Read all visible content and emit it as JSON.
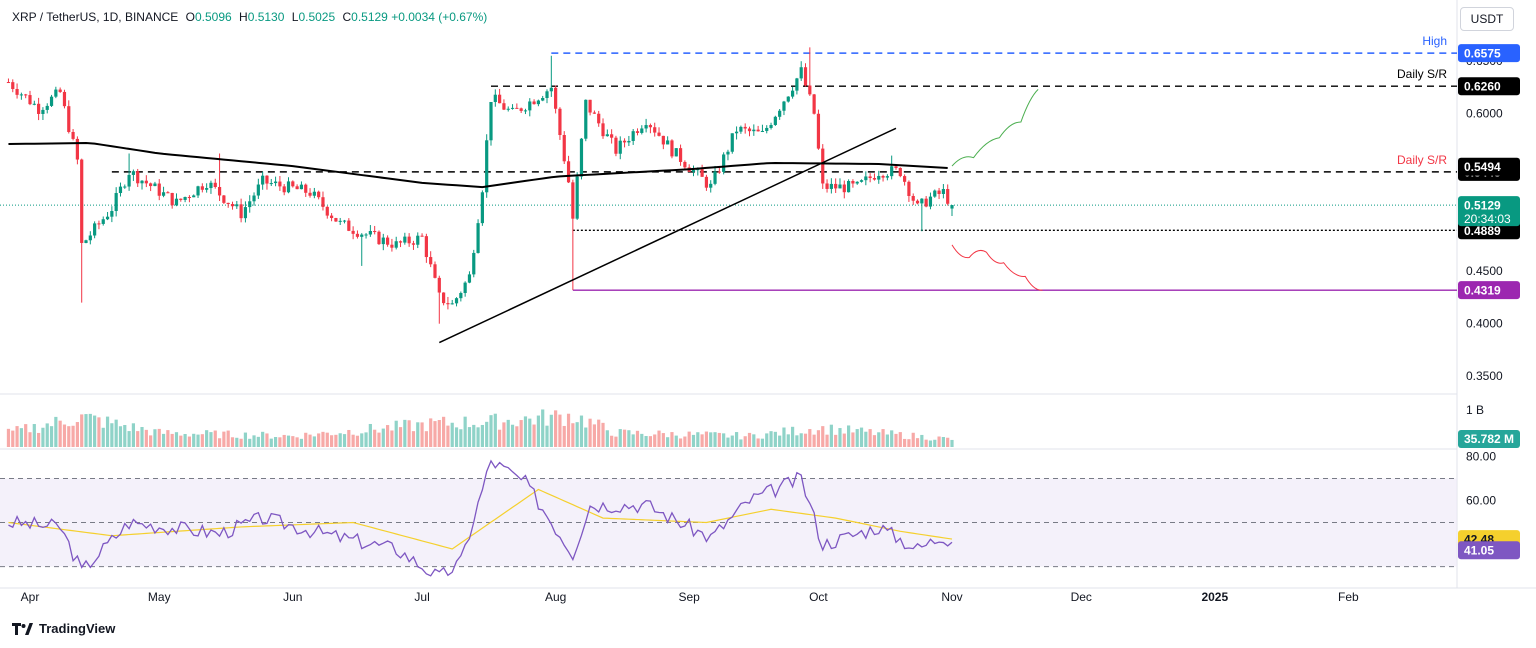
{
  "header": {
    "symbol_line": "XRP / TetherUS, 1D, BINANCE",
    "open_label": "O",
    "open": "0.5096",
    "high_label": "H",
    "high": "0.5130",
    "low_label": "L",
    "low": "0.5025",
    "close_label": "C",
    "close": "0.5129",
    "change": "+0.0034 (+0.67%)"
  },
  "unit_badge": "USDT",
  "footer_brand": "TradingView",
  "colors": {
    "up": "#089981",
    "down": "#f23645",
    "ma": "#000000",
    "high_line": "#2962ff",
    "support_line": "#9c27b0",
    "green_path": "#4caf50",
    "red_path": "#f23645",
    "rsi_line": "#7e57c2",
    "rsi_ma": "#f5d02d",
    "rsi_band": "#ede7f6"
  },
  "chart_data": [
    {
      "type": "candlestick",
      "panel": "price",
      "y_ticks": [
        "0.6500",
        "0.6000",
        "0.5500",
        "0.4500",
        "0.4000",
        "0.3500"
      ],
      "ylim": [
        0.335,
        0.67
      ],
      "x_ticks": [
        "Apr",
        "May",
        "Jun",
        "Jul",
        "Aug",
        "Sep",
        "Oct",
        "Nov",
        "Dec",
        "2025",
        "Feb"
      ],
      "date_range": [
        "2024-03-27",
        "2024-11-01"
      ],
      "moving_average_200": [
        {
          "date": "2024-03-27",
          "value": 0.571
        },
        {
          "date": "2024-04-15",
          "value": 0.572
        },
        {
          "date": "2024-05-01",
          "value": 0.562
        },
        {
          "date": "2024-06-01",
          "value": 0.55
        },
        {
          "date": "2024-07-01",
          "value": 0.534
        },
        {
          "date": "2024-07-15",
          "value": 0.53
        },
        {
          "date": "2024-08-01",
          "value": 0.54
        },
        {
          "date": "2024-09-01",
          "value": 0.547
        },
        {
          "date": "2024-09-20",
          "value": 0.553
        },
        {
          "date": "2024-10-15",
          "value": 0.552
        },
        {
          "date": "2024-11-01",
          "value": 0.548
        }
      ],
      "candle_waypoints": [
        {
          "date": "2024-03-27",
          "close": 0.63
        },
        {
          "date": "2024-04-03",
          "close": 0.605
        },
        {
          "date": "2024-04-08",
          "close": 0.62
        },
        {
          "date": "2024-04-12",
          "close": 0.555
        },
        {
          "date": "2024-04-13",
          "close": 0.475
        },
        {
          "date": "2024-04-20",
          "close": 0.51
        },
        {
          "date": "2024-04-24",
          "close": 0.545
        },
        {
          "date": "2024-05-05",
          "close": 0.515
        },
        {
          "date": "2024-05-12",
          "close": 0.535
        },
        {
          "date": "2024-05-20",
          "close": 0.505
        },
        {
          "date": "2024-05-25",
          "close": 0.535
        },
        {
          "date": "2024-06-05",
          "close": 0.525
        },
        {
          "date": "2024-06-12",
          "close": 0.495
        },
        {
          "date": "2024-06-18",
          "close": 0.485
        },
        {
          "date": "2024-06-25",
          "close": 0.475
        },
        {
          "date": "2024-07-01",
          "close": 0.482
        },
        {
          "date": "2024-07-05",
          "close": 0.425
        },
        {
          "date": "2024-07-08",
          "close": 0.418
        },
        {
          "date": "2024-07-12",
          "close": 0.445
        },
        {
          "date": "2024-07-15",
          "close": 0.53
        },
        {
          "date": "2024-07-17",
          "close": 0.615
        },
        {
          "date": "2024-07-22",
          "close": 0.6
        },
        {
          "date": "2024-07-31",
          "close": 0.625
        },
        {
          "date": "2024-08-04",
          "close": 0.535
        },
        {
          "date": "2024-08-05",
          "close": 0.5
        },
        {
          "date": "2024-08-08",
          "close": 0.61
        },
        {
          "date": "2024-08-15",
          "close": 0.565
        },
        {
          "date": "2024-08-22",
          "close": 0.595
        },
        {
          "date": "2024-08-28",
          "close": 0.565
        },
        {
          "date": "2024-09-06",
          "close": 0.53
        },
        {
          "date": "2024-09-12",
          "close": 0.585
        },
        {
          "date": "2024-09-18",
          "close": 0.58
        },
        {
          "date": "2024-09-27",
          "close": 0.64
        },
        {
          "date": "2024-09-30",
          "close": 0.6
        },
        {
          "date": "2024-10-02",
          "close": 0.53
        },
        {
          "date": "2024-10-10",
          "close": 0.53
        },
        {
          "date": "2024-10-15",
          "close": 0.545
        },
        {
          "date": "2024-10-20",
          "close": 0.545
        },
        {
          "date": "2024-10-24",
          "close": 0.51
        },
        {
          "date": "2024-10-27",
          "close": 0.52
        },
        {
          "date": "2024-10-30",
          "close": 0.525
        },
        {
          "date": "2024-11-01",
          "close": 0.5129
        }
      ],
      "ohlc_last": {
        "open": 0.5096,
        "high": 0.513,
        "low": 0.5025,
        "close": 0.5129
      },
      "levels": [
        {
          "name": "High",
          "value": 0.6575,
          "label": "0.6575",
          "style": "dashed",
          "color": "#2962ff"
        },
        {
          "name": "Daily S/R",
          "value": 0.626,
          "label": "0.6260",
          "style": "dashed",
          "color": "#000000"
        },
        {
          "name": "Daily S/R",
          "value": 0.5445,
          "label": "0.5445",
          "style": "dashed",
          "color": "#000000"
        },
        {
          "name": "",
          "value": 0.4889,
          "label": "0.4889",
          "style": "dotted",
          "color": "#000000"
        },
        {
          "name": "",
          "value": 0.4319,
          "label": "0.4319",
          "style": "solid",
          "color": "#9c27b0"
        }
      ],
      "level_text": {
        "high": "High",
        "daily_sr_upper": "Daily S/R",
        "daily_sr_lower": "Daily S/R"
      },
      "price_labels": {
        "ma_value": "0.5494",
        "current_price": "0.5129",
        "countdown": "20:34:03"
      },
      "trendline": [
        {
          "date": "2024-07-05",
          "value": 0.382
        },
        {
          "date": "2024-10-19",
          "value": 0.586
        }
      ],
      "projection_up": [
        {
          "date": "2024-11-01",
          "value": 0.55
        },
        {
          "date": "2024-11-06",
          "value": 0.558
        },
        {
          "date": "2024-11-12",
          "value": 0.577
        },
        {
          "date": "2024-11-17",
          "value": 0.592
        },
        {
          "date": "2024-11-21",
          "value": 0.623
        }
      ],
      "projection_down": [
        {
          "date": "2024-11-01",
          "value": 0.475
        },
        {
          "date": "2024-11-05",
          "value": 0.463
        },
        {
          "date": "2024-11-09",
          "value": 0.468
        },
        {
          "date": "2024-11-13",
          "value": 0.458
        },
        {
          "date": "2024-11-18",
          "value": 0.445
        },
        {
          "date": "2024-11-22",
          "value": 0.432
        }
      ]
    },
    {
      "type": "bar",
      "panel": "volume",
      "scale_label": "1 B",
      "last_value_label": "35.782 M",
      "relative_profile": [
        {
          "date": "2024-03-27",
          "value": 0.45
        },
        {
          "date": "2024-04-13",
          "value": 0.95
        },
        {
          "date": "2024-05-01",
          "value": 0.45
        },
        {
          "date": "2024-06-01",
          "value": 0.35
        },
        {
          "date": "2024-07-05",
          "value": 0.75
        },
        {
          "date": "2024-07-17",
          "value": 0.8
        },
        {
          "date": "2024-08-05",
          "value": 1.0
        },
        {
          "date": "2024-08-15",
          "value": 0.45
        },
        {
          "date": "2024-09-15",
          "value": 0.35
        },
        {
          "date": "2024-10-01",
          "value": 0.6
        },
        {
          "date": "2024-11-01",
          "value": 0.25
        }
      ]
    },
    {
      "type": "line",
      "panel": "rsi",
      "y_ticks": [
        "80.00",
        "60.00"
      ],
      "ylim": [
        23,
        82
      ],
      "band": [
        30,
        70
      ],
      "midline": 50,
      "rsi_value_label": "41.05",
      "rsi_ma_value_label": "42.48",
      "rsi_waypoints": [
        {
          "date": "2024-03-27",
          "value": 50
        },
        {
          "date": "2024-04-08",
          "value": 48
        },
        {
          "date": "2024-04-13",
          "value": 28
        },
        {
          "date": "2024-04-24",
          "value": 50
        },
        {
          "date": "2024-05-15",
          "value": 45
        },
        {
          "date": "2024-05-25",
          "value": 52
        },
        {
          "date": "2024-06-10",
          "value": 44
        },
        {
          "date": "2024-06-25",
          "value": 38
        },
        {
          "date": "2024-07-05",
          "value": 25
        },
        {
          "date": "2024-07-10",
          "value": 32
        },
        {
          "date": "2024-07-17",
          "value": 78
        },
        {
          "date": "2024-07-25",
          "value": 68
        },
        {
          "date": "2024-08-05",
          "value": 36
        },
        {
          "date": "2024-08-09",
          "value": 58
        },
        {
          "date": "2024-08-22",
          "value": 58
        },
        {
          "date": "2024-09-06",
          "value": 43
        },
        {
          "date": "2024-09-15",
          "value": 60
        },
        {
          "date": "2024-09-27",
          "value": 70
        },
        {
          "date": "2024-10-02",
          "value": 40
        },
        {
          "date": "2024-10-15",
          "value": 48
        },
        {
          "date": "2024-10-24",
          "value": 38
        },
        {
          "date": "2024-10-30",
          "value": 44
        },
        {
          "date": "2024-11-01",
          "value": 41.05
        }
      ],
      "rsi_ma_waypoints": [
        {
          "date": "2024-03-27",
          "value": 50
        },
        {
          "date": "2024-04-20",
          "value": 44
        },
        {
          "date": "2024-05-20",
          "value": 48
        },
        {
          "date": "2024-06-15",
          "value": 50
        },
        {
          "date": "2024-07-08",
          "value": 38
        },
        {
          "date": "2024-07-28",
          "value": 65
        },
        {
          "date": "2024-08-12",
          "value": 52
        },
        {
          "date": "2024-09-05",
          "value": 50
        },
        {
          "date": "2024-09-20",
          "value": 56
        },
        {
          "date": "2024-10-05",
          "value": 52
        },
        {
          "date": "2024-10-20",
          "value": 46
        },
        {
          "date": "2024-11-01",
          "value": 42.48
        }
      ]
    }
  ]
}
